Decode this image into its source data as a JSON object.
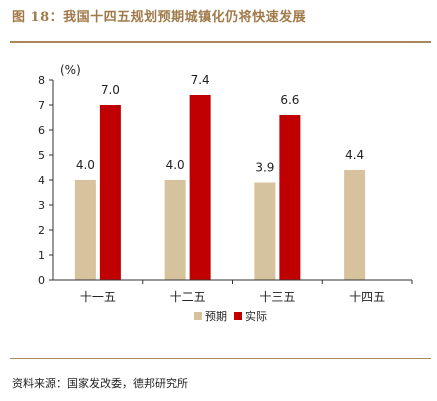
{
  "header": {
    "title": "图 18：我国十四五规划预期城镇化仍将快速发展"
  },
  "footer": {
    "source": "资料来源：国家发改委，德邦研究所"
  },
  "chart_data": {
    "type": "bar",
    "title": "",
    "ylabel": "(%)",
    "xlabel": "",
    "ylim": [
      0,
      8
    ],
    "yticks": [
      0,
      1,
      2,
      3,
      4,
      5,
      6,
      7,
      8
    ],
    "categories": [
      "十一五",
      "十二五",
      "十三五",
      "十四五"
    ],
    "series": [
      {
        "name": "预期",
        "color": "#d6c39e",
        "values": [
          4.0,
          4.0,
          3.9,
          4.4
        ],
        "labels": [
          "4.0",
          "4.0",
          "3.9",
          "4.4"
        ]
      },
      {
        "name": "实际",
        "color": "#c00000",
        "values": [
          7.0,
          7.4,
          6.6,
          null
        ],
        "labels": [
          "7.0",
          "7.4",
          "6.6",
          ""
        ]
      }
    ],
    "grid": false,
    "legend_position": "bottom-center"
  }
}
